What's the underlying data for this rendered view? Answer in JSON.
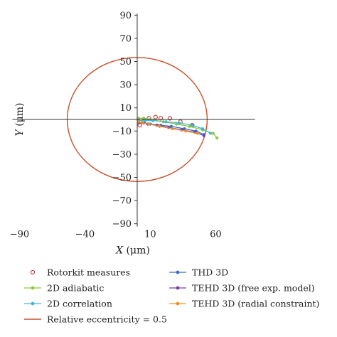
{
  "chart_data": {
    "type": "scatter",
    "xlim": [
      -90,
      90
    ],
    "ylim": [
      -90,
      90
    ],
    "x_ticks": [
      -90,
      -40,
      10,
      60
    ],
    "y_ticks": [
      90,
      70,
      50,
      30,
      10,
      -10,
      -30,
      -50,
      -70,
      -90
    ],
    "x_tick_labels": [
      "−90",
      "−40",
      "10",
      "60"
    ],
    "y_tick_labels": [
      "90",
      "70",
      "50",
      "30",
      "10",
      "−10",
      "−30",
      "−50",
      "−70",
      "−90"
    ],
    "xlabel": {
      "var": "X",
      "unit": " (μm)"
    },
    "ylabel": {
      "var": "Y",
      "unit": " (μm)"
    },
    "grid": false,
    "legend_position": "bottom",
    "circle": {
      "name": "Relative eccentricity = 0.5",
      "radius": 53.5,
      "color": "#c8502a"
    },
    "series": [
      {
        "name": "Rotorkit measures",
        "kind": "open-marker",
        "color": "#c0392b",
        "x": [
          2,
          5,
          9,
          14,
          18,
          25,
          33,
          42
        ],
        "y": [
          -5,
          -2,
          1,
          2,
          1,
          1,
          -2,
          -5
        ]
      },
      {
        "name": "2D adiabatic",
        "kind": "line-marker",
        "color": "#8dc63f",
        "x": [
          1,
          5,
          10,
          20,
          30,
          40,
          50,
          58,
          61
        ],
        "y": [
          1,
          1,
          0,
          -2,
          -4,
          -6,
          -9,
          -12,
          -16
        ]
      },
      {
        "name": "2D correlation",
        "kind": "line-marker",
        "color": "#3fb6d8",
        "x": [
          1,
          6,
          12,
          22,
          32,
          42,
          50,
          56
        ],
        "y": [
          -1,
          -1,
          -1,
          -2,
          -3,
          -5,
          -8,
          -12
        ]
      },
      {
        "name": "THD 3D",
        "kind": "line-marker",
        "color": "#3d6cc8",
        "x": [
          1,
          5,
          10,
          18,
          26,
          36,
          45,
          51
        ],
        "y": [
          -2,
          -3,
          -4,
          -5,
          -6,
          -8,
          -10,
          -13
        ]
      },
      {
        "name": "TEHD 3D (free exp. model)",
        "kind": "line-marker",
        "color": "#6f42a8",
        "x": [
          1,
          4,
          8,
          15,
          24,
          34,
          44,
          51
        ],
        "y": [
          -3,
          -3,
          -4,
          -5,
          -7,
          -9,
          -11,
          -14
        ]
      },
      {
        "name": "TEHD 3D (radial constraint)",
        "kind": "line-marker",
        "color": "#f0902a",
        "x": [
          1,
          4,
          9,
          17,
          27,
          37,
          46
        ],
        "y": [
          -2,
          -3,
          -4,
          -6,
          -8,
          -10,
          -12
        ]
      }
    ],
    "legend_order": [
      "Rotorkit measures",
      "THD 3D",
      "2D adiabatic",
      "TEHD 3D (free exp. model)",
      "2D correlation",
      "TEHD 3D (radial constraint)",
      "Relative eccentricity = 0.5"
    ]
  }
}
